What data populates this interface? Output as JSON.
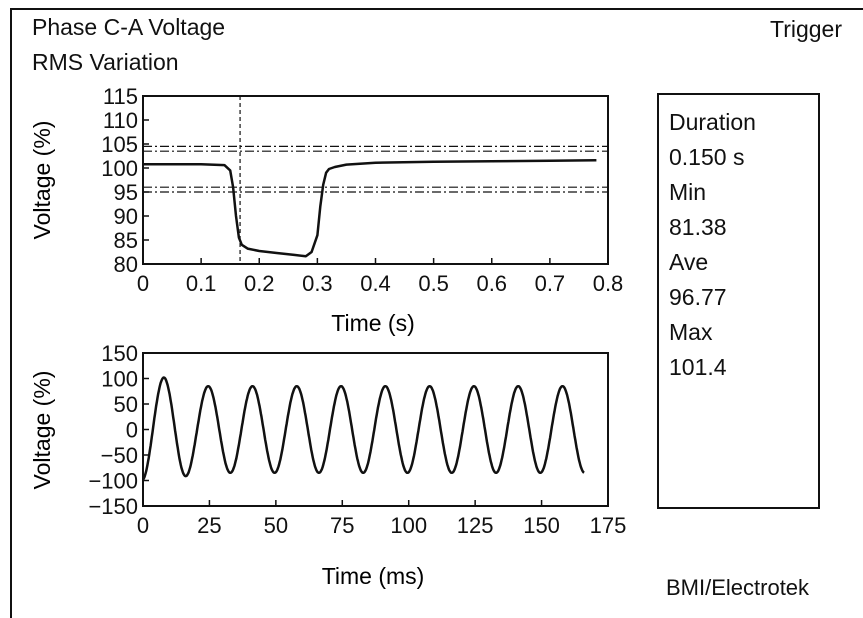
{
  "header": {
    "title_line1": "Phase C-A Voltage",
    "title_line2": "RMS Variation",
    "trigger_label": "Trigger"
  },
  "stats": {
    "duration_label": "Duration",
    "duration_value": "0.150 s",
    "min_label": "Min",
    "min_value": "81.38",
    "ave_label": "Ave",
    "ave_value": "96.77",
    "max_label": "Max",
    "max_value": "101.4"
  },
  "footer": {
    "credit": "BMI/Electrotek"
  },
  "colors": {
    "ink": "#111111",
    "background": "#ffffff"
  },
  "chart_data": [
    {
      "type": "line",
      "title": "",
      "xlabel": "Time (s)",
      "ylabel": "Voltage (%)",
      "xlim": [
        0,
        0.8
      ],
      "ylim": [
        80,
        115
      ],
      "xticks": [
        0,
        0.1,
        0.2,
        0.3,
        0.4,
        0.5,
        0.6,
        0.7,
        0.8
      ],
      "xtick_labels": [
        "0",
        "0.1",
        "0.2",
        "0.3",
        "0.4",
        "0.5",
        "0.6",
        "0.7",
        "0.8"
      ],
      "yticks": [
        80,
        85,
        90,
        95,
        100,
        105,
        110,
        115
      ],
      "ytick_labels": [
        "80",
        "85",
        "90",
        "95",
        "100",
        "105",
        "110",
        "115"
      ],
      "threshold_lines": [
        104.5,
        103.5,
        96,
        95
      ],
      "trigger_time": 0.167,
      "grid": false,
      "series": [
        {
          "x": [
            0,
            0.05,
            0.1,
            0.14,
            0.15,
            0.155,
            0.16,
            0.165,
            0.17,
            0.18,
            0.2,
            0.23,
            0.26,
            0.28,
            0.29,
            0.3,
            0.305,
            0.31,
            0.315,
            0.32,
            0.33,
            0.35,
            0.4,
            0.5,
            0.6,
            0.7,
            0.78
          ],
          "y": [
            100.8,
            100.8,
            100.8,
            100.6,
            99.5,
            96,
            90,
            85.5,
            84,
            83.2,
            82.7,
            82.3,
            81.9,
            81.6,
            82.5,
            86,
            92,
            96.5,
            99,
            99.8,
            100.2,
            100.7,
            101.1,
            101.3,
            101.4,
            101.5,
            101.6
          ]
        }
      ]
    },
    {
      "type": "line",
      "title": "",
      "xlabel": "Time (ms)",
      "ylabel": "Voltage (%)",
      "xlim": [
        0,
        175
      ],
      "ylim": [
        -150,
        150
      ],
      "xticks": [
        0,
        25,
        50,
        75,
        100,
        125,
        150,
        175
      ],
      "xtick_labels": [
        "0",
        "25",
        "50",
        "75",
        "100",
        "125",
        "150",
        "175"
      ],
      "yticks": [
        -150,
        -100,
        -50,
        0,
        50,
        100,
        150
      ],
      "ytick_labels": [
        "−150",
        "−100",
        "−50",
        "0",
        "50",
        "100",
        "150"
      ],
      "grid": false,
      "waveform": {
        "frequency_hz": 60,
        "phase_deg": -80,
        "start_ms": 0,
        "end_ms": 166,
        "amplitude_points_ms": [
          0,
          8,
          14,
          20,
          166
        ],
        "amplitude_values": [
          100,
          102,
          95,
          85,
          85
        ]
      }
    }
  ]
}
